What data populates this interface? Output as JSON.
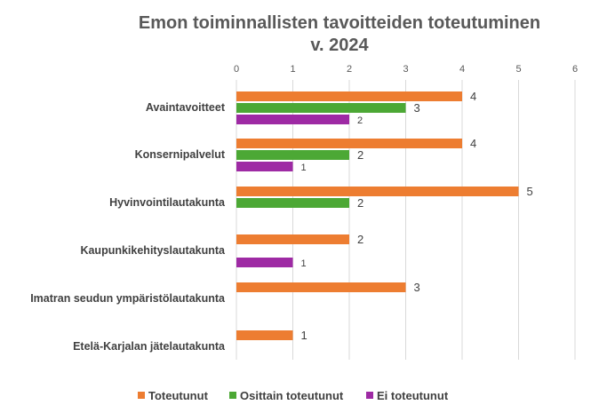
{
  "chart_data": {
    "type": "bar",
    "orientation": "horizontal",
    "title_lines": [
      "Emon toiminnallisten tavoitteiden toteutuminen",
      "v. 2024"
    ],
    "categories": [
      "Avaintavoitteet",
      "Konsernipalvelut",
      "Hyvinvointilautakunta",
      "Kaupunkikehityslautakunta",
      "Imatran seudun ympäristölautakunta",
      "Etelä-Karjalan jätelautakunta"
    ],
    "series": [
      {
        "name": "Toteutunut",
        "color": "#ED7D31",
        "values": [
          4,
          4,
          5,
          2,
          3,
          1
        ]
      },
      {
        "name": "Osittain toteutunut",
        "color": "#4CA835",
        "values": [
          3,
          2,
          2,
          null,
          null,
          null
        ]
      },
      {
        "name": "Ei toteutunut",
        "color": "#9E2AA4",
        "values": [
          2,
          1,
          null,
          1,
          null,
          null
        ]
      }
    ],
    "xlim": [
      0,
      6
    ],
    "xticks": [
      "0",
      "1",
      "2",
      "3",
      "4",
      "5",
      "6"
    ],
    "xaxis_position": "top",
    "grid": true,
    "legend_position": "bottom"
  }
}
